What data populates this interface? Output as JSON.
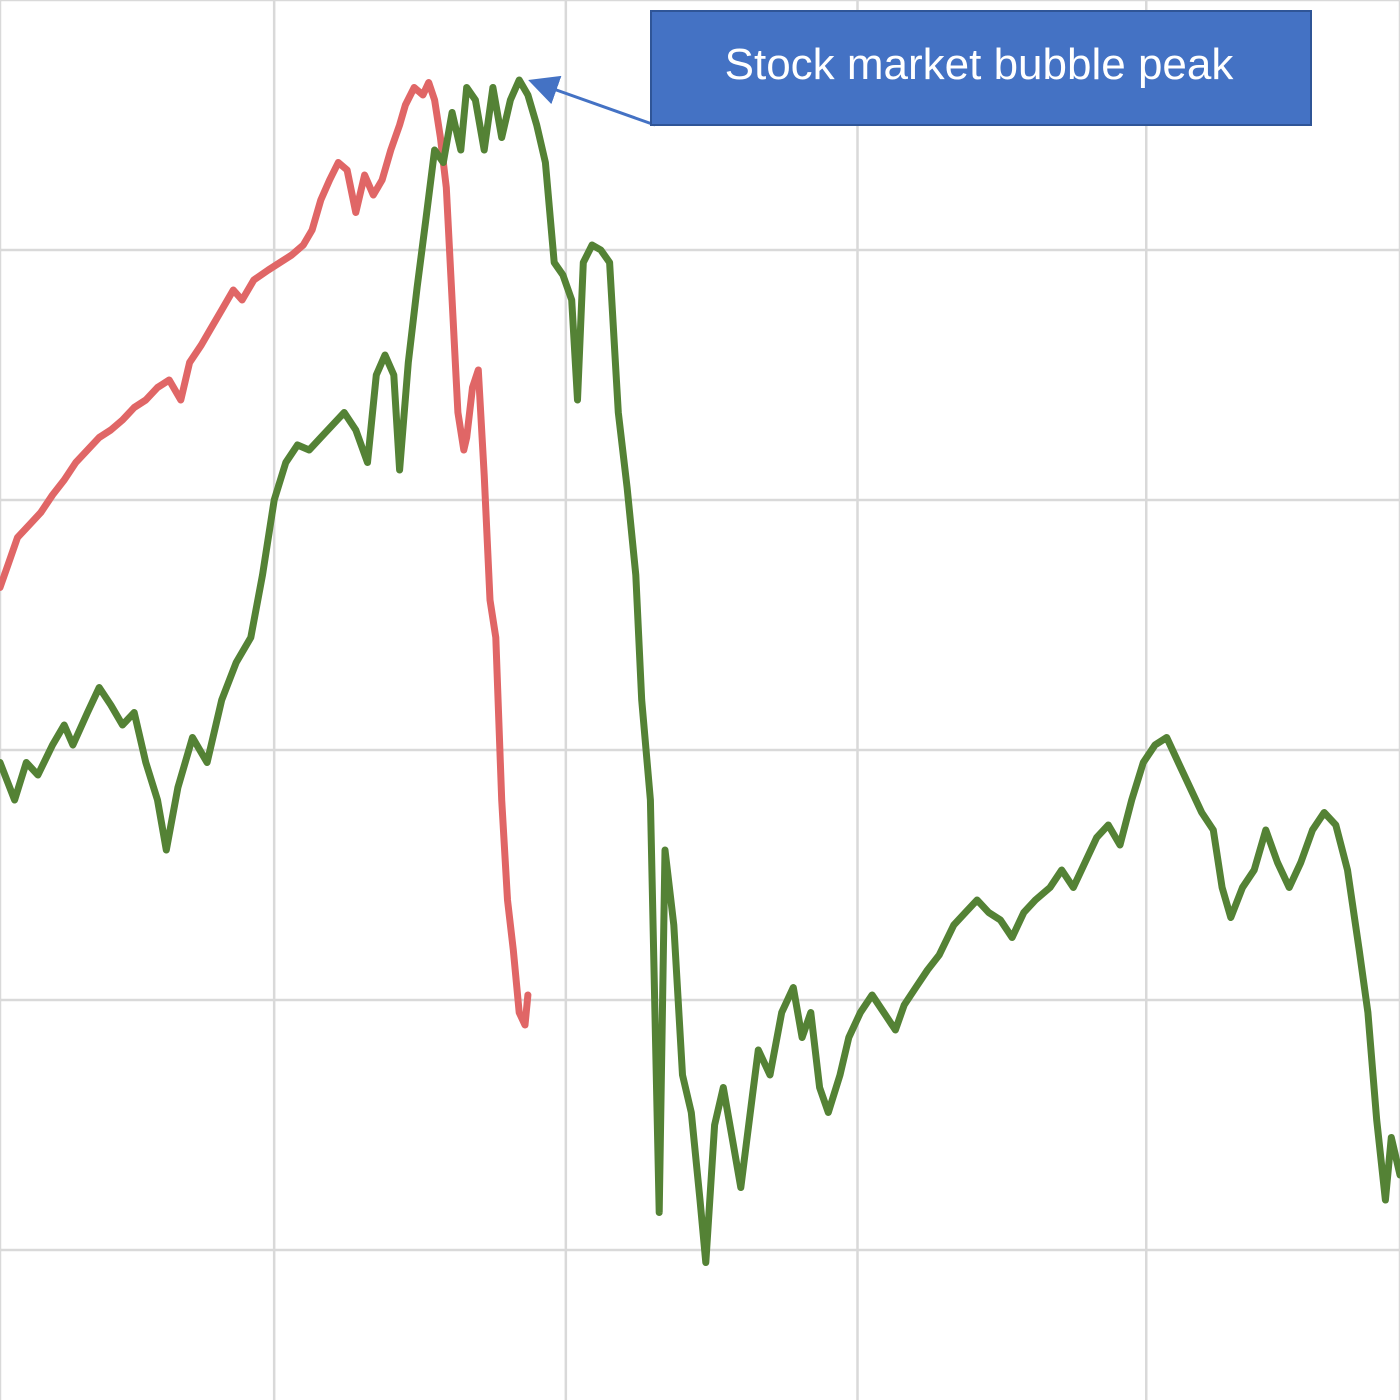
{
  "chart_data": {
    "type": "line",
    "title": "",
    "xlabel": "",
    "ylabel": "",
    "xlim": [
      0,
      48
    ],
    "ylim": [
      0,
      5.6
    ],
    "x_gridlines": [
      0,
      9.4,
      19.4,
      29.4,
      39.3,
      48
    ],
    "y_gridlines": [
      0.6,
      1.6,
      2.6,
      3.6,
      4.6,
      5.6
    ],
    "grid": true,
    "legend": "none",
    "series": [
      {
        "color": "#e06666",
        "points": [
          [
            0.0,
            3.25
          ],
          [
            0.3,
            3.35
          ],
          [
            0.6,
            3.45
          ],
          [
            1.0,
            3.5
          ],
          [
            1.4,
            3.55
          ],
          [
            1.8,
            3.62
          ],
          [
            2.2,
            3.68
          ],
          [
            2.6,
            3.75
          ],
          [
            3.0,
            3.8
          ],
          [
            3.4,
            3.85
          ],
          [
            3.8,
            3.88
          ],
          [
            4.2,
            3.92
          ],
          [
            4.6,
            3.97
          ],
          [
            5.0,
            4.0
          ],
          [
            5.4,
            4.05
          ],
          [
            5.8,
            4.08
          ],
          [
            6.2,
            4.0
          ],
          [
            6.5,
            4.15
          ],
          [
            6.9,
            4.22
          ],
          [
            7.2,
            4.28
          ],
          [
            7.6,
            4.36
          ],
          [
            8.0,
            4.44
          ],
          [
            8.3,
            4.4
          ],
          [
            8.7,
            4.48
          ],
          [
            9.2,
            4.52
          ],
          [
            9.6,
            4.55
          ],
          [
            10.0,
            4.58
          ],
          [
            10.4,
            4.62
          ],
          [
            10.7,
            4.68
          ],
          [
            11.0,
            4.8
          ],
          [
            11.3,
            4.88
          ],
          [
            11.6,
            4.95
          ],
          [
            11.9,
            4.92
          ],
          [
            12.2,
            4.75
          ],
          [
            12.5,
            4.9
          ],
          [
            12.8,
            4.82
          ],
          [
            13.1,
            4.88
          ],
          [
            13.4,
            5.0
          ],
          [
            13.7,
            5.1
          ],
          [
            13.9,
            5.18
          ],
          [
            14.2,
            5.25
          ],
          [
            14.5,
            5.22
          ],
          [
            14.7,
            5.27
          ],
          [
            14.9,
            5.2
          ],
          [
            15.1,
            5.05
          ],
          [
            15.3,
            4.85
          ],
          [
            15.5,
            4.4
          ],
          [
            15.7,
            3.95
          ],
          [
            15.9,
            3.8
          ],
          [
            16.0,
            3.85
          ],
          [
            16.2,
            4.05
          ],
          [
            16.4,
            4.12
          ],
          [
            16.6,
            3.7
          ],
          [
            16.8,
            3.2
          ],
          [
            17.0,
            3.05
          ],
          [
            17.2,
            2.4
          ],
          [
            17.4,
            2.0
          ],
          [
            17.6,
            1.8
          ],
          [
            17.8,
            1.55
          ],
          [
            18.0,
            1.5
          ],
          [
            18.1,
            1.62
          ]
        ]
      },
      {
        "color": "#548235",
        "points": [
          [
            0.0,
            2.55
          ],
          [
            0.5,
            2.4
          ],
          [
            0.9,
            2.55
          ],
          [
            1.3,
            2.5
          ],
          [
            1.8,
            2.62
          ],
          [
            2.2,
            2.7
          ],
          [
            2.5,
            2.62
          ],
          [
            3.0,
            2.75
          ],
          [
            3.4,
            2.85
          ],
          [
            3.8,
            2.78
          ],
          [
            4.2,
            2.7
          ],
          [
            4.6,
            2.75
          ],
          [
            5.0,
            2.55
          ],
          [
            5.4,
            2.4
          ],
          [
            5.7,
            2.2
          ],
          [
            6.1,
            2.45
          ],
          [
            6.6,
            2.65
          ],
          [
            7.1,
            2.55
          ],
          [
            7.6,
            2.8
          ],
          [
            8.1,
            2.95
          ],
          [
            8.6,
            3.05
          ],
          [
            9.0,
            3.3
          ],
          [
            9.4,
            3.6
          ],
          [
            9.8,
            3.75
          ],
          [
            10.2,
            3.82
          ],
          [
            10.6,
            3.8
          ],
          [
            11.0,
            3.85
          ],
          [
            11.4,
            3.9
          ],
          [
            11.8,
            3.95
          ],
          [
            12.2,
            3.88
          ],
          [
            12.6,
            3.75
          ],
          [
            12.9,
            4.1
          ],
          [
            13.2,
            4.18
          ],
          [
            13.5,
            4.1
          ],
          [
            13.7,
            3.72
          ],
          [
            14.0,
            4.15
          ],
          [
            14.3,
            4.45
          ],
          [
            14.6,
            4.72
          ],
          [
            14.9,
            5.0
          ],
          [
            15.2,
            4.95
          ],
          [
            15.5,
            5.15
          ],
          [
            15.8,
            5.0
          ],
          [
            16.0,
            5.25
          ],
          [
            16.3,
            5.2
          ],
          [
            16.6,
            5.0
          ],
          [
            16.9,
            5.25
          ],
          [
            17.2,
            5.05
          ],
          [
            17.5,
            5.2
          ],
          [
            17.8,
            5.28
          ],
          [
            18.1,
            5.22
          ],
          [
            18.4,
            5.1
          ],
          [
            18.7,
            4.95
          ],
          [
            19.0,
            4.55
          ],
          [
            19.3,
            4.5
          ],
          [
            19.6,
            4.4
          ],
          [
            19.8,
            4.0
          ],
          [
            20.0,
            4.55
          ],
          [
            20.3,
            4.62
          ],
          [
            20.6,
            4.6
          ],
          [
            20.9,
            4.55
          ],
          [
            21.2,
            3.95
          ],
          [
            21.5,
            3.65
          ],
          [
            21.8,
            3.3
          ],
          [
            22.0,
            2.8
          ],
          [
            22.3,
            2.4
          ],
          [
            22.6,
            0.75
          ],
          [
            22.8,
            2.2
          ],
          [
            23.1,
            1.9
          ],
          [
            23.4,
            1.3
          ],
          [
            23.7,
            1.15
          ],
          [
            24.0,
            0.8
          ],
          [
            24.2,
            0.55
          ],
          [
            24.5,
            1.1
          ],
          [
            24.8,
            1.25
          ],
          [
            25.1,
            1.05
          ],
          [
            25.4,
            0.85
          ],
          [
            25.8,
            1.22
          ],
          [
            26.0,
            1.4
          ],
          [
            26.4,
            1.3
          ],
          [
            26.8,
            1.55
          ],
          [
            27.2,
            1.65
          ],
          [
            27.5,
            1.45
          ],
          [
            27.8,
            1.55
          ],
          [
            28.1,
            1.25
          ],
          [
            28.4,
            1.15
          ],
          [
            28.8,
            1.3
          ],
          [
            29.1,
            1.45
          ],
          [
            29.5,
            1.55
          ],
          [
            29.9,
            1.62
          ],
          [
            30.3,
            1.55
          ],
          [
            30.7,
            1.48
          ],
          [
            31.0,
            1.58
          ],
          [
            31.4,
            1.65
          ],
          [
            31.8,
            1.72
          ],
          [
            32.2,
            1.78
          ],
          [
            32.7,
            1.9
          ],
          [
            33.1,
            1.95
          ],
          [
            33.5,
            2.0
          ],
          [
            33.9,
            1.95
          ],
          [
            34.3,
            1.92
          ],
          [
            34.7,
            1.85
          ],
          [
            35.1,
            1.95
          ],
          [
            35.5,
            2.0
          ],
          [
            36.0,
            2.05
          ],
          [
            36.4,
            2.12
          ],
          [
            36.8,
            2.05
          ],
          [
            37.2,
            2.15
          ],
          [
            37.6,
            2.25
          ],
          [
            38.0,
            2.3
          ],
          [
            38.4,
            2.22
          ],
          [
            38.8,
            2.4
          ],
          [
            39.2,
            2.55
          ],
          [
            39.6,
            2.62
          ],
          [
            40.0,
            2.65
          ],
          [
            40.4,
            2.55
          ],
          [
            40.8,
            2.45
          ],
          [
            41.2,
            2.35
          ],
          [
            41.6,
            2.28
          ],
          [
            41.9,
            2.05
          ],
          [
            42.2,
            1.93
          ],
          [
            42.6,
            2.05
          ],
          [
            43.0,
            2.12
          ],
          [
            43.4,
            2.28
          ],
          [
            43.8,
            2.15
          ],
          [
            44.2,
            2.05
          ],
          [
            44.6,
            2.15
          ],
          [
            45.0,
            2.28
          ],
          [
            45.4,
            2.35
          ],
          [
            45.8,
            2.3
          ],
          [
            46.2,
            2.12
          ],
          [
            46.6,
            1.8
          ],
          [
            46.9,
            1.55
          ],
          [
            47.2,
            1.12
          ],
          [
            47.5,
            0.8
          ],
          [
            47.7,
            1.05
          ],
          [
            48.0,
            0.9
          ]
        ]
      }
    ],
    "annotations": [
      {
        "text": "Stock market bubble peak",
        "box_fill": "#4472c4",
        "text_color": "#ffffff",
        "target": [
          18.3,
          5.24
        ]
      }
    ]
  }
}
